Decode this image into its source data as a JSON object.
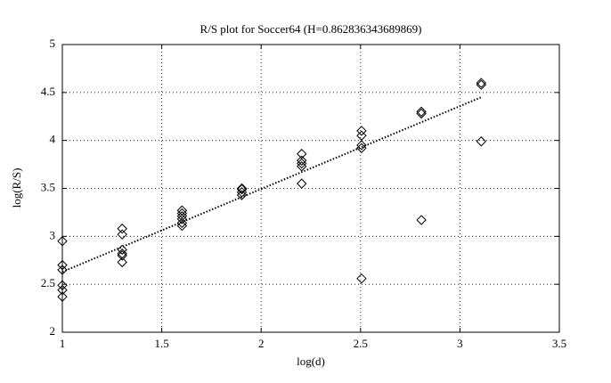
{
  "chart_data": {
    "type": "scatter",
    "title": "R/S plot for Soccer64 (H=0.862836343689869)",
    "x_label": "log(d)",
    "y_label": "log(R/S)",
    "xlim": [
      1,
      3.5
    ],
    "xticks": [
      1,
      1.5,
      2,
      2.5,
      3,
      3.5
    ],
    "ylim": [
      2,
      5
    ],
    "yticks": [
      2,
      2.5,
      3,
      3.5,
      4,
      4.5,
      5
    ],
    "grid": true,
    "series": [
      {
        "color": "#000000",
        "marker": "diamond",
        "x": [
          1,
          1,
          1,
          1,
          1,
          1,
          1.301,
          1.301,
          1.301,
          1.301,
          1.301,
          1.301,
          1.602,
          1.602,
          1.602,
          1.602,
          1.602,
          1.602,
          1.903,
          1.903,
          1.903,
          1.903,
          2.204,
          2.204,
          2.204,
          2.204,
          2.204,
          2.505,
          2.505,
          2.505,
          2.505,
          2.505,
          2.806,
          2.806,
          2.806,
          3.107,
          3.107,
          3.107
        ],
        "values": [
          2.95,
          2.7,
          2.65,
          2.49,
          2.44,
          2.37,
          3.08,
          3.02,
          2.86,
          2.82,
          2.8,
          2.73,
          3.27,
          3.24,
          3.21,
          3.18,
          3.14,
          3.11,
          3.5,
          3.49,
          3.46,
          3.43,
          3.86,
          3.79,
          3.76,
          3.73,
          3.55,
          4.1,
          4.05,
          3.95,
          3.92,
          2.56,
          4.3,
          4.28,
          3.17,
          4.6,
          4.58,
          3.99
        ]
      }
    ],
    "fit": {
      "color": "#000000",
      "style": "dotted",
      "x": [
        1,
        3.107
      ],
      "values": [
        2.63,
        4.45
      ]
    }
  }
}
